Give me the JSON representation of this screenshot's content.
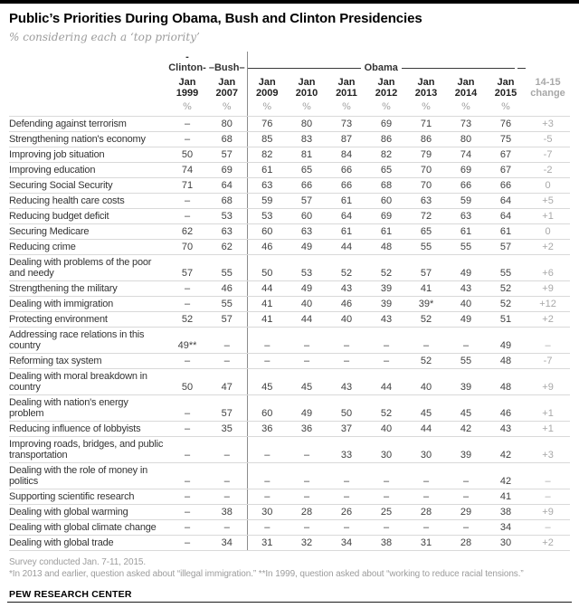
{
  "header": {
    "title": "Public’s Priorities During Obama, Bush and Clinton Presidencies",
    "subtitle": "% considering each a ‘top priority’"
  },
  "table": {
    "groups": {
      "clinton": "-Clinton-",
      "bush": "–Bush–",
      "obama": "Obama"
    },
    "change_col": {
      "line1": "14-15",
      "line2": "change"
    },
    "unit": "%"
  },
  "chart_data": {
    "type": "table",
    "title": "Public’s Priorities During Obama, Bush and Clinton Presidencies",
    "subtitle": "% considering each a ‘top priority’",
    "column_groups": [
      {
        "label": "Clinton",
        "columns": [
          "Jan 1999"
        ]
      },
      {
        "label": "Bush",
        "columns": [
          "Jan 2007"
        ]
      },
      {
        "label": "Obama",
        "columns": [
          "Jan 2009",
          "Jan 2010",
          "Jan 2011",
          "Jan 2012",
          "Jan 2013",
          "Jan 2014",
          "Jan 2015"
        ]
      }
    ],
    "columns": [
      "Jan 1999",
      "Jan 2007",
      "Jan 2009",
      "Jan 2010",
      "Jan 2011",
      "Jan 2012",
      "Jan 2013",
      "Jan 2014",
      "Jan 2015"
    ],
    "change_column": "14-15 change",
    "unit": "%",
    "rows": [
      {
        "label": "Defending against terrorism",
        "values": [
          null,
          80,
          76,
          80,
          73,
          69,
          71,
          73,
          76
        ],
        "change": "+3"
      },
      {
        "label": "Strengthening nation's economy",
        "values": [
          null,
          68,
          85,
          83,
          87,
          86,
          86,
          80,
          75
        ],
        "change": "-5"
      },
      {
        "label": "Improving job situation",
        "values": [
          50,
          57,
          82,
          81,
          84,
          82,
          79,
          74,
          67
        ],
        "change": "-7"
      },
      {
        "label": "Improving education",
        "values": [
          74,
          69,
          61,
          65,
          66,
          65,
          70,
          69,
          67
        ],
        "change": "-2"
      },
      {
        "label": "Securing Social Security",
        "values": [
          71,
          64,
          63,
          66,
          66,
          68,
          70,
          66,
          66
        ],
        "change": "0"
      },
      {
        "label": "Reducing health care costs",
        "values": [
          null,
          68,
          59,
          57,
          61,
          60,
          63,
          59,
          64
        ],
        "change": "+5"
      },
      {
        "label": "Reducing budget deficit",
        "values": [
          null,
          53,
          53,
          60,
          64,
          69,
          72,
          63,
          64
        ],
        "change": "+1"
      },
      {
        "label": "Securing Medicare",
        "values": [
          62,
          63,
          60,
          63,
          61,
          61,
          65,
          61,
          61
        ],
        "change": "0"
      },
      {
        "label": "Reducing crime",
        "values": [
          70,
          62,
          46,
          49,
          44,
          48,
          55,
          55,
          57
        ],
        "change": "+2"
      },
      {
        "label": "Dealing with problems of the poor and needy",
        "values": [
          57,
          55,
          50,
          53,
          52,
          52,
          57,
          49,
          55
        ],
        "change": "+6"
      },
      {
        "label": "Strengthening the military",
        "values": [
          null,
          46,
          44,
          49,
          43,
          39,
          41,
          43,
          52
        ],
        "change": "+9"
      },
      {
        "label": "Dealing with immigration",
        "values": [
          null,
          55,
          41,
          40,
          46,
          39,
          "39*",
          40,
          52
        ],
        "change": "+12"
      },
      {
        "label": "Protecting environment",
        "values": [
          52,
          57,
          41,
          44,
          40,
          43,
          52,
          49,
          51
        ],
        "change": "+2"
      },
      {
        "label": "Addressing race relations in this country",
        "values": [
          "49**",
          null,
          null,
          null,
          null,
          null,
          null,
          null,
          49
        ],
        "change": "–"
      },
      {
        "label": "Reforming tax system",
        "values": [
          null,
          null,
          null,
          null,
          null,
          null,
          52,
          55,
          48
        ],
        "change": "-7"
      },
      {
        "label": "Dealing with moral breakdown in country",
        "values": [
          50,
          47,
          45,
          45,
          43,
          44,
          40,
          39,
          48
        ],
        "change": "+9"
      },
      {
        "label": "Dealing with nation's energy problem",
        "values": [
          null,
          57,
          60,
          49,
          50,
          52,
          45,
          45,
          46
        ],
        "change": "+1"
      },
      {
        "label": "Reducing influence of lobbyists",
        "values": [
          null,
          35,
          36,
          36,
          37,
          40,
          44,
          42,
          43
        ],
        "change": "+1"
      },
      {
        "label": "Improving roads, bridges, and public transportation",
        "values": [
          null,
          null,
          null,
          null,
          33,
          30,
          30,
          39,
          42
        ],
        "change": "+3"
      },
      {
        "label": "Dealing with the role of money in politics",
        "values": [
          null,
          null,
          null,
          null,
          null,
          null,
          null,
          null,
          42
        ],
        "change": "–"
      },
      {
        "label": "Supporting scientific research",
        "values": [
          null,
          null,
          null,
          null,
          null,
          null,
          null,
          null,
          41
        ],
        "change": "–"
      },
      {
        "label": "Dealing with global warming",
        "values": [
          null,
          38,
          30,
          28,
          26,
          25,
          28,
          29,
          38
        ],
        "change": "+9"
      },
      {
        "label": "Dealing with global climate change",
        "values": [
          null,
          null,
          null,
          null,
          null,
          null,
          null,
          null,
          34
        ],
        "change": "–"
      },
      {
        "label": "Dealing with global trade",
        "values": [
          null,
          34,
          31,
          32,
          34,
          38,
          31,
          28,
          30
        ],
        "change": "+2"
      }
    ]
  },
  "footer": {
    "note1": "Survey conducted Jan. 7-11, 2015.",
    "note2": "*In 2013 and earlier, question asked about “illegal immigration.” **In 1999, question asked about “working to reduce racial tensions.”",
    "source": "PEW RESEARCH CENTER"
  }
}
